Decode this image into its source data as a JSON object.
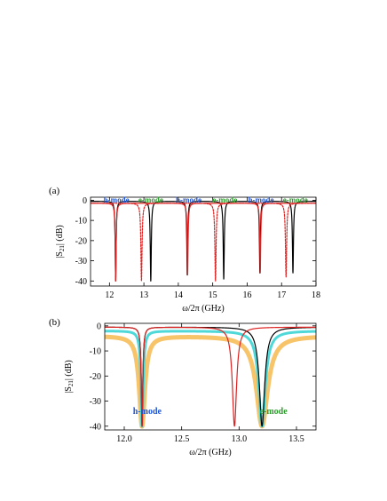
{
  "colors": {
    "h_mode": "#2255cc",
    "e_mode": "#2e9a2e",
    "black": "#000000",
    "red": "#dd2222",
    "cyan": "#4fd8d8",
    "orange": "#f7c46a"
  },
  "chart_data": [
    {
      "type": "line",
      "panel_label": "(a)",
      "xlabel": "ω/2π (GHz)",
      "ylabel": "|S",
      "ylabel_sub": "21",
      "ylabel_suffix": "| (dB)",
      "xlim": [
        11.45,
        18.0
      ],
      "ylim": [
        -42.5,
        1.5
      ],
      "xticks": [
        12,
        13,
        14,
        15,
        16,
        17,
        18
      ],
      "yticks": [
        0,
        -10,
        -20,
        -30,
        -40
      ],
      "mode_labels": [
        {
          "text": "h-mode",
          "x": 12.2,
          "color": "h_mode"
        },
        {
          "text": "e-mode",
          "x": 13.2,
          "color": "e_mode"
        },
        {
          "text": "h-mode",
          "x": 14.3,
          "color": "h_mode"
        },
        {
          "text": "e-mode",
          "x": 15.35,
          "color": "e_mode"
        },
        {
          "text": "h-mode",
          "x": 16.4,
          "color": "h_mode"
        },
        {
          "text": "e-mode",
          "x": 17.4,
          "color": "e_mode"
        }
      ],
      "series": [
        {
          "color": "black",
          "style": "solid",
          "baseline": -0.5,
          "resonances": [
            {
              "f": 12.18,
              "depth": -40,
              "gamma": 0.016
            },
            {
              "f": 13.2,
              "depth": -40,
              "gamma": 0.018
            },
            {
              "f": 14.26,
              "depth": -37,
              "gamma": 0.016
            },
            {
              "f": 15.32,
              "depth": -39,
              "gamma": 0.018
            },
            {
              "f": 16.37,
              "depth": -36,
              "gamma": 0.016
            },
            {
              "f": 17.33,
              "depth": -36,
              "gamma": 0.018
            }
          ]
        },
        {
          "color": "red",
          "style": "solid",
          "baseline": -1.5,
          "resonances": [
            {
              "f": 12.18,
              "depth": -40,
              "gamma": 0.016
            },
            {
              "f": 14.27,
              "depth": -37,
              "gamma": 0.016
            },
            {
              "f": 16.38,
              "depth": -36,
              "gamma": 0.016
            }
          ]
        },
        {
          "color": "red",
          "style": "dashed",
          "baseline": -1.5,
          "resonances": [
            {
              "f": 12.93,
              "depth": -40,
              "gamma": 0.02
            },
            {
              "f": 15.08,
              "depth": -40,
              "gamma": 0.02
            },
            {
              "f": 17.13,
              "depth": -38,
              "gamma": 0.02
            }
          ]
        }
      ]
    },
    {
      "type": "line",
      "panel_label": "(b)",
      "xlabel": "ω/2π (GHz)",
      "ylabel": "|S",
      "ylabel_sub": "21",
      "ylabel_suffix": "| (dB)",
      "xlim": [
        11.83,
        13.67
      ],
      "ylim": [
        -41.5,
        1.0
      ],
      "xticks": [
        12.0,
        12.5,
        13.0,
        13.5
      ],
      "xtick_labels": [
        "12.0",
        "12.5",
        "13.0",
        "13.5"
      ],
      "yticks": [
        0,
        -10,
        -20,
        -30,
        -40
      ],
      "mode_labels": [
        {
          "text": "h-mode",
          "x": 12.2,
          "y": -34,
          "color": "h_mode"
        },
        {
          "text": "e-mode",
          "x": 13.3,
          "y": -34,
          "color": "e_mode"
        }
      ],
      "series": [
        {
          "color": "orange",
          "width": 5,
          "baseline": -4,
          "resonances": [
            {
              "f": 12.155,
              "depth": -40,
              "gamma": 0.03
            },
            {
              "f": 13.2,
              "depth": -40,
              "gamma": 0.06
            }
          ]
        },
        {
          "color": "cyan",
          "width": 3,
          "baseline": -2,
          "resonances": [
            {
              "f": 12.155,
              "depth": -40,
              "gamma": 0.012
            },
            {
              "f": 13.2,
              "depth": -40,
              "gamma": 0.035
            }
          ]
        },
        {
          "color": "black",
          "width": 1.2,
          "baseline": -0.5,
          "resonances": [
            {
              "f": 12.155,
              "depth": -40,
              "gamma": 0.008
            },
            {
              "f": 13.2,
              "depth": -40,
              "gamma": 0.028
            }
          ]
        },
        {
          "color": "red",
          "width": 1.2,
          "baseline": -0.5,
          "resonances": [
            {
              "f": 12.155,
              "depth": -40,
              "gamma": 0.008
            },
            {
              "f": 12.96,
              "depth": -40,
              "gamma": 0.022
            }
          ]
        }
      ]
    }
  ]
}
